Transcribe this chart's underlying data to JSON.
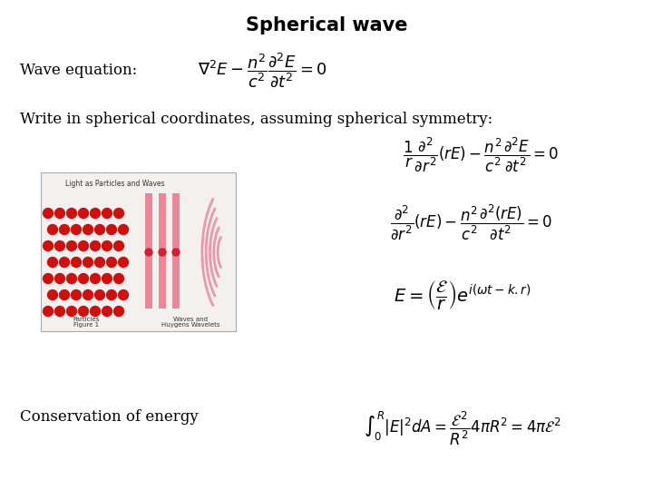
{
  "title": "Spherical wave",
  "title_fontsize": 15,
  "background_color": "#ffffff",
  "text_color": "#000000",
  "label_wave_equation": "Wave equation:",
  "label_write_in": "Write in spherical coordinates, assuming spherical symmetry:",
  "label_conservation": "Conservation of energy",
  "eq1": "$\\nabla^2 E - \\dfrac{n^2}{c^2}\\dfrac{\\partial^2 E}{\\partial t^2} = 0$",
  "eq2": "$\\dfrac{1}{r}\\dfrac{\\partial^2}{\\partial r^2}(rE) - \\dfrac{n^2}{c^2}\\dfrac{\\partial^2 E}{\\partial t^2} = 0$",
  "eq3": "$\\dfrac{\\partial^2}{\\partial r^2}(rE) - \\dfrac{n^2}{c^2}\\dfrac{\\partial^2 (rE)}{\\partial t^2} = 0$",
  "eq4": "$E = \\left(\\dfrac{\\mathcal{E}}{r}\\right)e^{i(\\omega t - k.r)}$",
  "eq5": "$\\int_0^R |E|^2 dA = \\dfrac{\\mathcal{E}^2}{R^2}4\\pi R^2 = 4\\pi\\mathcal{E}^2$",
  "fig_width": 7.2,
  "fig_height": 5.4,
  "dpi": 100
}
